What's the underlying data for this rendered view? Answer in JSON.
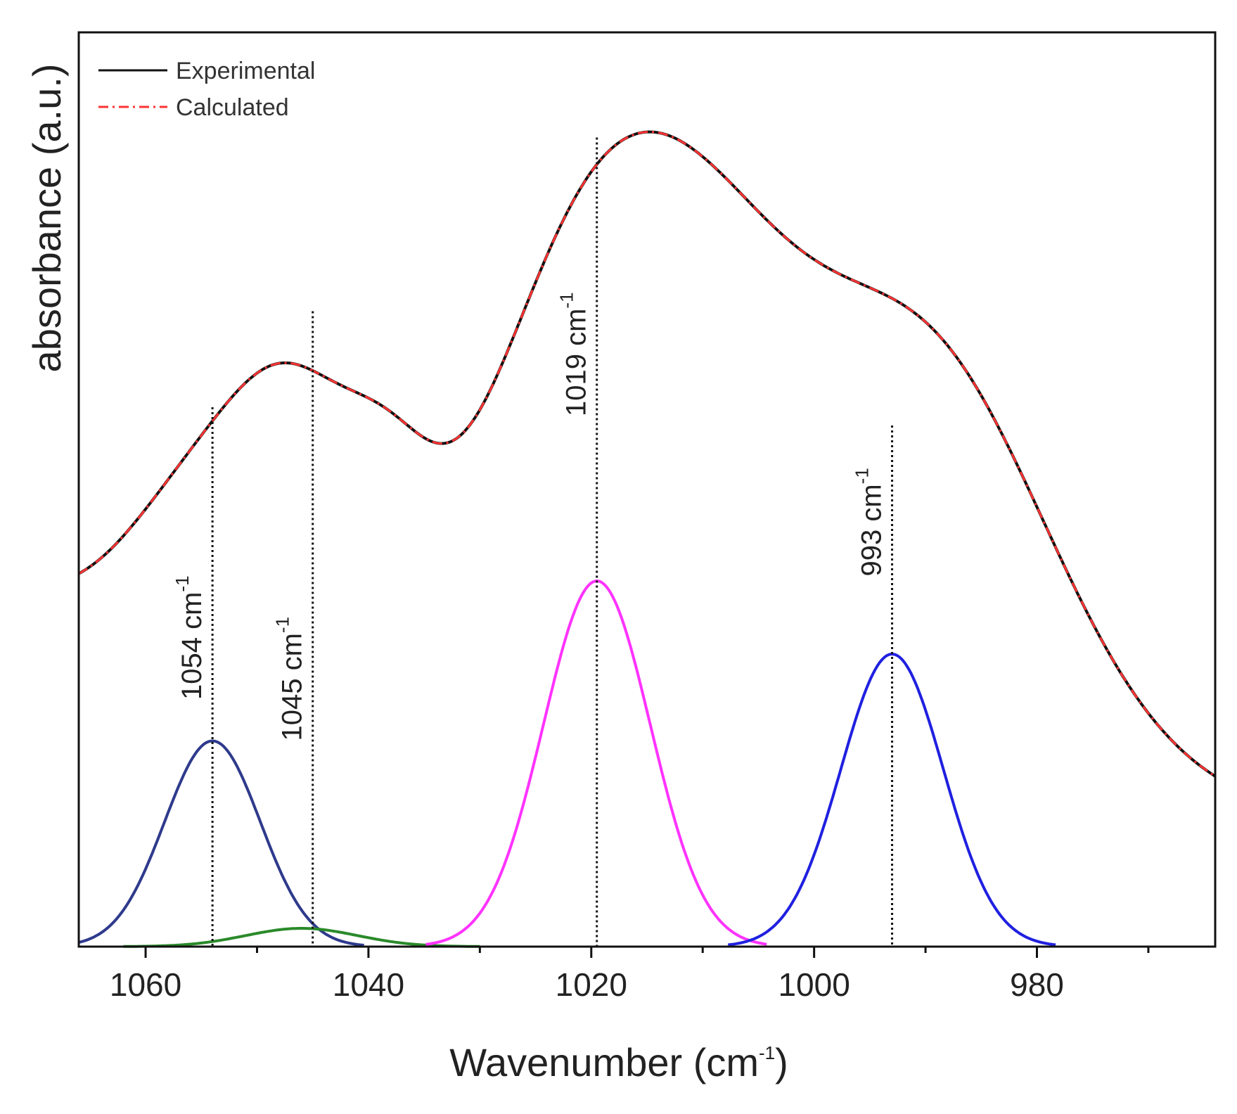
{
  "chart_data": {
    "type": "line",
    "title": "",
    "xlabel": "Wavenumber (cm",
    "xlabel_sup": "-1",
    "xlabel_close": ")",
    "ylabel": "absorbance (a.u.)",
    "xlim": [
      1066,
      964
    ],
    "ylim": [
      0,
      1.0
    ],
    "x_reversed": true,
    "x_ticks": [
      1060,
      1040,
      1020,
      1000,
      980
    ],
    "x_tick_labels": [
      "1060",
      "1040",
      "1020",
      "1000",
      "980"
    ],
    "x_minor_ticks": [
      1050,
      1030,
      1010,
      990,
      970
    ],
    "grid": false,
    "legend": {
      "position": "top-left",
      "entries": [
        {
          "label": "Experimental",
          "color": "#111111",
          "style": "solid"
        },
        {
          "label": "Calculated",
          "color": "#ff3333",
          "style": "dash-dot"
        }
      ]
    },
    "envelope": {
      "baseline_low_x": 1066,
      "baseline_low_y": 0.38,
      "baseline_high_x": 964,
      "baseline_high_y": 0.16,
      "components": [
        {
          "center": 1057,
          "height": 0.1,
          "width": 5.5
        },
        {
          "center": 1047,
          "height": 0.265,
          "width": 6.0
        },
        {
          "center": 1038,
          "height": 0.11,
          "width": 4.0
        },
        {
          "center": 1021,
          "height": 0.4,
          "width": 9.0
        },
        {
          "center": 1009,
          "height": 0.335,
          "width": 9.0
        },
        {
          "center": 990,
          "height": 0.43,
          "width": 11.0
        }
      ]
    },
    "series": [
      {
        "name": "Experimental",
        "color": "#111111"
      },
      {
        "name": "Calculated",
        "color": "#ff3333"
      },
      {
        "name": "Peak 1054",
        "color": "#2e3a8c",
        "center": 1054,
        "height": 0.225,
        "width": 4.3
      },
      {
        "name": "Peak 1045",
        "color": "#2a8a2a",
        "center": 1046,
        "height": 0.02,
        "width": 5.0
      },
      {
        "name": "Peak 1019",
        "color": "#ff33ff",
        "center": 1019.5,
        "height": 0.4,
        "width": 4.8
      },
      {
        "name": "Peak 993",
        "color": "#2020e0",
        "center": 993,
        "height": 0.32,
        "width": 4.6
      }
    ],
    "annotations": [
      {
        "label": "1054 cm",
        "sup": "-1",
        "x": 1054,
        "label_y": 0.27,
        "line_top": 0.59
      },
      {
        "label": "1045 cm",
        "sup": "-1",
        "x": 1045,
        "label_y": 0.225,
        "line_top": 0.695
      },
      {
        "label": "1019 cm",
        "sup": "-1",
        "x": 1019.5,
        "label_y": 0.58,
        "line_top": 0.885
      },
      {
        "label": "993 cm",
        "sup": "-1",
        "x": 993,
        "label_y": 0.405,
        "line_top": 0.57
      }
    ]
  }
}
